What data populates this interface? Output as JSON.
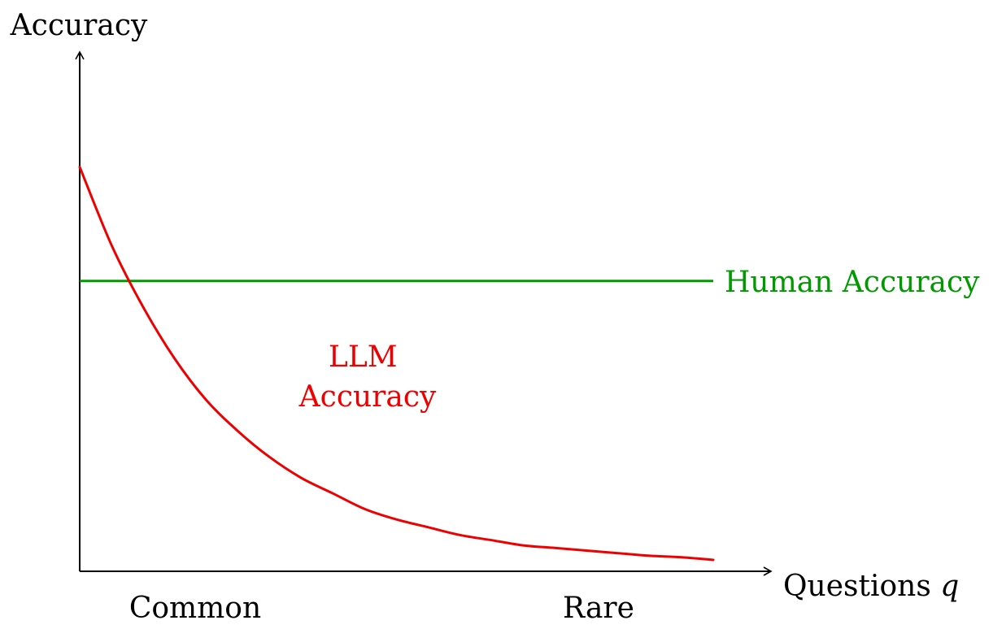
{
  "chart_data": {
    "type": "line",
    "title": "",
    "ylabel": "Accuracy",
    "xlabel_text": "Questions ",
    "xlabel_var": "q",
    "x_ticks": [
      "Common",
      "Rare"
    ],
    "xlim": [
      0,
      1
    ],
    "ylim": [
      0,
      1
    ],
    "grid": false,
    "series": [
      {
        "name_lines": [
          "LLM",
          "Accuracy"
        ],
        "color": "#ee0000",
        "x": [
          0,
          0.05,
          0.1,
          0.15,
          0.2,
          0.25,
          0.3,
          0.35,
          0.4,
          0.45,
          0.5,
          0.55,
          0.6,
          0.65,
          0.7,
          0.75,
          0.8,
          0.85,
          0.9,
          0.95,
          1.0
        ],
        "y": [
          0.78,
          0.63,
          0.51,
          0.41,
          0.33,
          0.27,
          0.22,
          0.18,
          0.15,
          0.12,
          0.1,
          0.085,
          0.07,
          0.06,
          0.05,
          0.045,
          0.04,
          0.035,
          0.03,
          0.027,
          0.022
        ]
      },
      {
        "name": "Human Accuracy",
        "color": "#009900",
        "x": [
          0,
          1
        ],
        "y": [
          0.56,
          0.56
        ]
      }
    ]
  }
}
